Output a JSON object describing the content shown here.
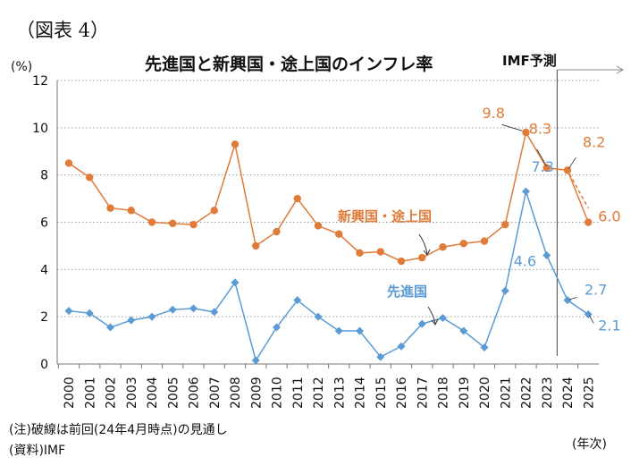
{
  "figure_label": "（図表 4）",
  "header": {
    "title": "先進国と新興国・途上国のインフレ率",
    "imf_forecast_label": "IMF予測",
    "y_unit": "(%)",
    "x_unit": "(年次)"
  },
  "notes": {
    "note": "(注)破線は前回(24年4月時点)の見通し",
    "source": "(資料)IMF"
  },
  "chart_data": {
    "type": "line",
    "categories": [
      "2000",
      "2001",
      "2002",
      "2003",
      "2004",
      "2005",
      "2006",
      "2007",
      "2008",
      "2009",
      "2010",
      "2011",
      "2012",
      "2013",
      "2014",
      "2015",
      "2016",
      "2017",
      "2018",
      "2019",
      "2020",
      "2021",
      "2022",
      "2023",
      "2024",
      "2025"
    ],
    "ylim": [
      0,
      12
    ],
    "yticks": [
      0,
      2,
      4,
      6,
      8,
      10,
      12
    ],
    "grid": "horizontal dotted",
    "forecast_start": "2024",
    "series": [
      {
        "name": "新興国・途上国",
        "color": "#E07B39",
        "marker": "circle",
        "values": [
          8.5,
          7.9,
          6.6,
          6.5,
          6.0,
          5.95,
          5.9,
          6.5,
          9.3,
          5.0,
          5.6,
          7.0,
          5.85,
          5.5,
          4.7,
          4.75,
          4.35,
          4.5,
          4.95,
          5.1,
          5.2,
          5.9,
          9.8,
          8.3,
          8.2,
          6.0
        ]
      },
      {
        "name": "先進国",
        "color": "#5B9BD5",
        "marker": "diamond",
        "values": [
          2.25,
          2.15,
          1.55,
          1.85,
          2.0,
          2.3,
          2.35,
          2.2,
          3.45,
          0.15,
          1.55,
          2.7,
          2.0,
          1.4,
          1.4,
          0.3,
          0.75,
          1.7,
          1.95,
          1.4,
          0.7,
          3.1,
          7.3,
          4.6,
          2.7,
          2.1
        ]
      }
    ],
    "previous_outlook_dashed": {
      "color": "#E07B39",
      "categories": [
        "2023",
        "2024",
        "2025"
      ],
      "values": [
        8.3,
        8.2,
        6.6
      ]
    },
    "data_labels": [
      {
        "series": 0,
        "category": "2022",
        "text": "9.8"
      },
      {
        "series": 0,
        "category": "2023",
        "text": "8.3"
      },
      {
        "series": 0,
        "category": "2024",
        "text": "8.2"
      },
      {
        "series": 0,
        "category": "2025",
        "text": "6.0"
      },
      {
        "series": 1,
        "category": "2022",
        "text": "7.3"
      },
      {
        "series": 1,
        "category": "2023",
        "text": "4.6"
      },
      {
        "series": 1,
        "category": "2024",
        "text": "2.7"
      },
      {
        "series": 1,
        "category": "2025",
        "text": "2.1"
      }
    ]
  }
}
